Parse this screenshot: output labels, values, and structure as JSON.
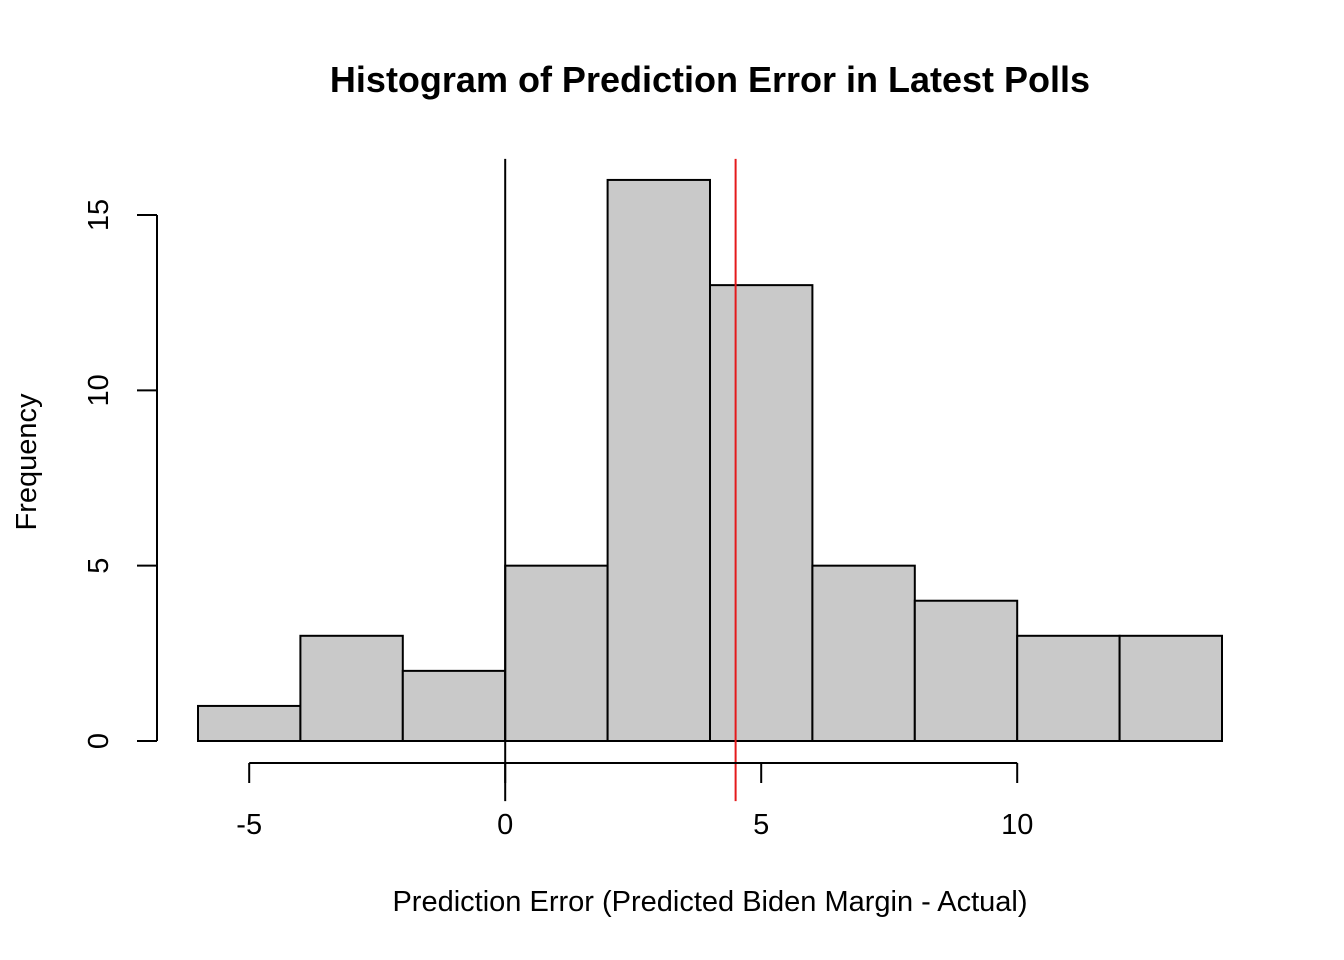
{
  "chart_data": {
    "type": "bar",
    "title": "Histogram of Prediction Error in Latest Polls",
    "xlabel": "Prediction Error (Predicted Biden Margin - Actual)",
    "ylabel": "Frequency",
    "bins": [
      {
        "from": -6,
        "to": -4,
        "count": 1
      },
      {
        "from": -4,
        "to": -2,
        "count": 3
      },
      {
        "from": -2,
        "to": 0,
        "count": 2
      },
      {
        "from": 0,
        "to": 2,
        "count": 5
      },
      {
        "from": 2,
        "to": 4,
        "count": 16
      },
      {
        "from": 4,
        "to": 6,
        "count": 13
      },
      {
        "from": 6,
        "to": 8,
        "count": 5
      },
      {
        "from": 8,
        "to": 10,
        "count": 4
      },
      {
        "from": 10,
        "to": 12,
        "count": 3
      },
      {
        "from": 12,
        "to": 14,
        "count": 3
      }
    ],
    "xlim": [
      -6,
      14
    ],
    "ylim": [
      0,
      16.6
    ],
    "x_ticks": [
      -5,
      0,
      5,
      10
    ],
    "x_tick_labels": [
      "-5",
      "0",
      "5",
      "10"
    ],
    "y_ticks": [
      0,
      5,
      10,
      15
    ],
    "y_tick_labels": [
      "0",
      "5",
      "10",
      "15"
    ],
    "bar_fill": "#c9c9c9",
    "reference_lines": [
      {
        "x": 0,
        "color": "#000000"
      },
      {
        "x": 4.5,
        "color": "#e41a1c"
      }
    ],
    "grid": false,
    "legend": "none"
  }
}
